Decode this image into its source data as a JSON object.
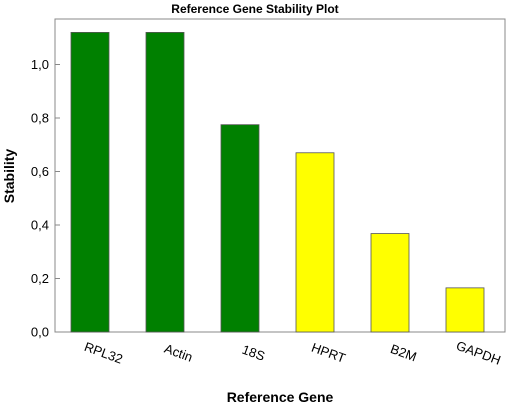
{
  "chart_data": {
    "type": "bar",
    "title": "Reference Gene Stability Plot",
    "xlabel": "Reference Gene",
    "ylabel": "Stability",
    "categories": [
      "RPL32",
      "Actin",
      "18S",
      "HPRT",
      "B2M",
      "GAPDH"
    ],
    "values": [
      1.12,
      1.12,
      0.775,
      0.67,
      0.368,
      0.165
    ],
    "colors": [
      "#008000",
      "#008000",
      "#008000",
      "#ffff00",
      "#ffff00",
      "#ffff00"
    ],
    "ylim": [
      0,
      1.15
    ],
    "yticks": [
      0.0,
      0.2,
      0.4,
      0.6,
      0.8,
      1.0
    ],
    "ytick_labels": [
      "0,0",
      "0,2",
      "0,4",
      "0,6",
      "0,8",
      "1,0"
    ],
    "grid": false,
    "legend": "none"
  }
}
